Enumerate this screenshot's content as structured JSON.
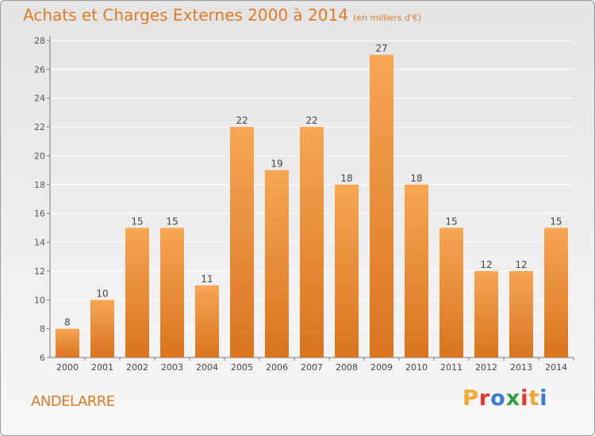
{
  "header": {
    "title": "Achats et Charges Externes 2000 à 2014",
    "unit": "(en milliers d'€)"
  },
  "footer": {
    "commune": "ANDELARRE",
    "logo_letters": [
      "P",
      "r",
      "o",
      "x",
      "i",
      "t",
      "i"
    ],
    "logo_colors": [
      "#f5a52a",
      "#e2352c",
      "#3a7bd5",
      "#2f9e3f",
      "#e2352c",
      "#f5a52a",
      "#3a7bd5"
    ]
  },
  "colors": {
    "bar_top": "#f6a653",
    "bar_bottom": "#d9741f",
    "title": "#e07a26",
    "grid": "#ffffff",
    "axis": "#7a7a7a"
  },
  "chart_data": {
    "type": "bar",
    "title": "Achats et Charges Externes 2000 à 2014",
    "xlabel": "",
    "ylabel": "",
    "categories": [
      "2000",
      "2001",
      "2002",
      "2003",
      "2004",
      "2005",
      "2006",
      "2007",
      "2008",
      "2009",
      "2010",
      "2011",
      "2012",
      "2013",
      "2014"
    ],
    "values": [
      8,
      10,
      15,
      15,
      11,
      22,
      19,
      22,
      18,
      27,
      18,
      15,
      12,
      12,
      15
    ],
    "ylim": [
      6,
      28
    ],
    "yticks": [
      6,
      8,
      10,
      12,
      14,
      16,
      18,
      20,
      22,
      24,
      26,
      28
    ],
    "grid": true,
    "data_labels": true
  }
}
